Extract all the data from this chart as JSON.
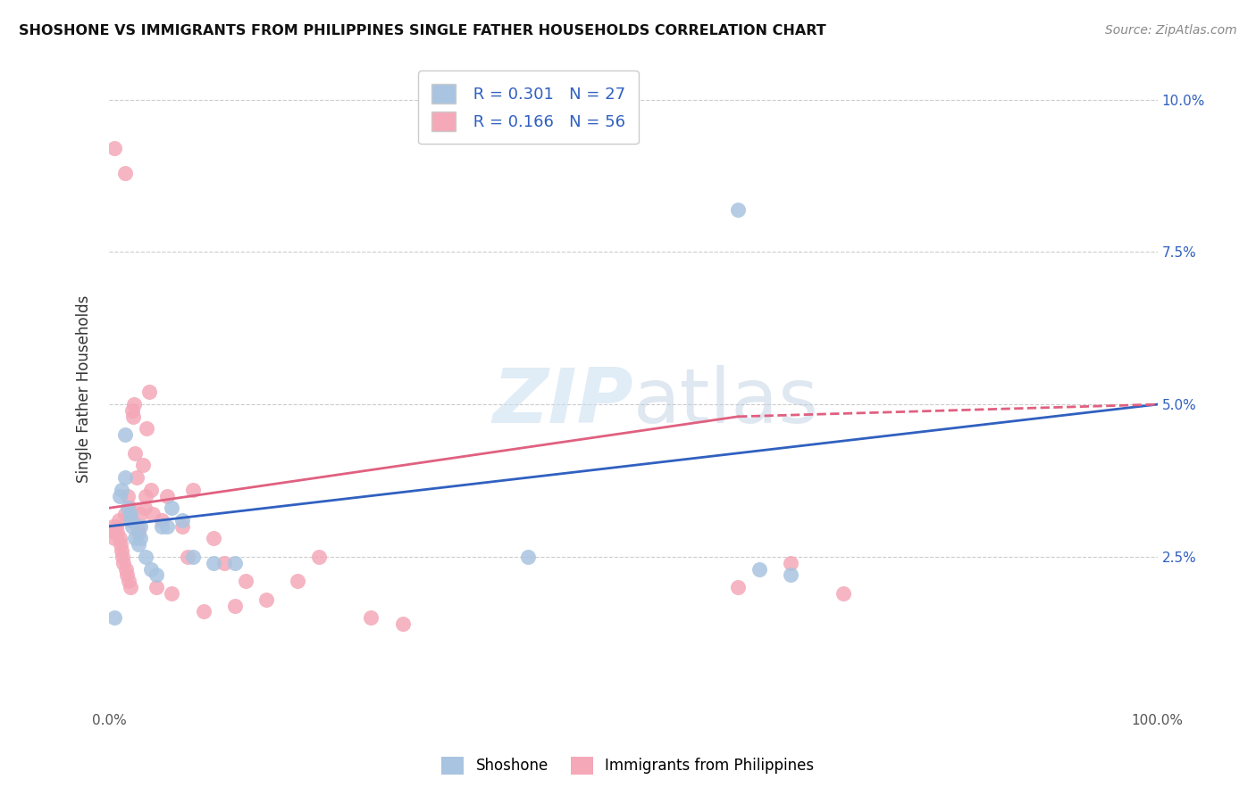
{
  "title": "SHOSHONE VS IMMIGRANTS FROM PHILIPPINES SINGLE FATHER HOUSEHOLDS CORRELATION CHART",
  "source": "Source: ZipAtlas.com",
  "ylabel": "Single Father Households",
  "xlim": [
    0.0,
    100.0
  ],
  "ylim": [
    0.0,
    10.5
  ],
  "yticks": [
    0.0,
    2.5,
    5.0,
    7.5,
    10.0
  ],
  "ytick_labels": [
    "",
    "2.5%",
    "5.0%",
    "7.5%",
    "10.0%"
  ],
  "legend_label1": "Shoshone",
  "legend_label2": "Immigrants from Philippines",
  "R1": "0.301",
  "N1": "27",
  "R2": "0.166",
  "N2": "56",
  "color1": "#a8c4e0",
  "color2": "#f4a8b8",
  "line_color1": "#3060c0",
  "line_color2": "#e06080",
  "shoshone_x": [
    0.5,
    1.0,
    1.2,
    1.5,
    1.5,
    1.8,
    2.0,
    2.0,
    2.2,
    2.5,
    2.8,
    3.0,
    3.0,
    3.5,
    4.0,
    4.5,
    5.0,
    5.5,
    6.0,
    7.0,
    8.0,
    10.0,
    12.0,
    40.0,
    60.0,
    62.0,
    65.0
  ],
  "shoshone_y": [
    1.5,
    3.5,
    3.6,
    3.8,
    4.5,
    3.3,
    3.2,
    3.1,
    3.0,
    2.8,
    2.7,
    2.8,
    3.0,
    2.5,
    2.3,
    2.2,
    3.0,
    3.0,
    3.3,
    3.1,
    2.5,
    2.4,
    2.4,
    2.5,
    8.2,
    2.3,
    2.2
  ],
  "philippines_x": [
    0.3,
    0.5,
    0.5,
    0.6,
    0.7,
    0.8,
    0.9,
    1.0,
    1.1,
    1.2,
    1.3,
    1.4,
    1.5,
    1.5,
    1.6,
    1.7,
    1.8,
    1.9,
    2.0,
    2.0,
    2.1,
    2.2,
    2.3,
    2.4,
    2.5,
    2.6,
    2.7,
    2.8,
    3.0,
    3.2,
    3.4,
    3.5,
    3.6,
    3.8,
    4.0,
    4.2,
    4.5,
    5.0,
    5.5,
    6.0,
    7.0,
    7.5,
    8.0,
    9.0,
    10.0,
    11.0,
    12.0,
    13.0,
    15.0,
    18.0,
    20.0,
    25.0,
    28.0,
    60.0,
    65.0,
    70.0
  ],
  "philippines_y": [
    3.0,
    9.2,
    2.8,
    2.9,
    3.0,
    2.9,
    3.1,
    2.8,
    2.7,
    2.6,
    2.5,
    2.4,
    3.2,
    8.8,
    2.3,
    2.2,
    3.5,
    2.1,
    3.3,
    2.0,
    3.1,
    4.9,
    4.8,
    5.0,
    4.2,
    3.8,
    3.0,
    2.9,
    3.2,
    4.0,
    3.3,
    3.5,
    4.6,
    5.2,
    3.6,
    3.2,
    2.0,
    3.1,
    3.5,
    1.9,
    3.0,
    2.5,
    3.6,
    1.6,
    2.8,
    2.4,
    1.7,
    2.1,
    1.8,
    2.1,
    2.5,
    1.5,
    1.4,
    2.0,
    2.4,
    1.9
  ]
}
